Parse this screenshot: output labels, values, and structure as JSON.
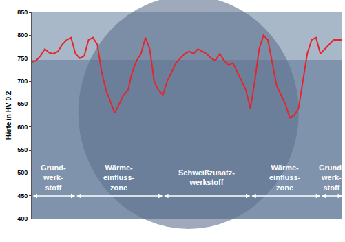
{
  "chart_data": {
    "type": "line",
    "y_label": "Härte in HV 0,2",
    "categories": [
      null,
      null,
      null,
      null,
      null,
      null,
      null,
      null,
      null,
      null,
      null,
      null,
      null,
      null,
      null,
      null,
      null,
      null,
      null,
      null,
      null,
      null,
      null,
      null,
      null,
      null,
      null,
      null,
      null,
      null,
      null,
      null,
      null,
      null,
      null,
      null,
      null,
      null,
      null,
      null,
      null,
      null,
      null,
      null,
      null,
      null,
      null,
      null,
      null,
      null,
      null,
      null,
      null,
      null,
      null,
      null,
      null,
      null,
      null,
      null,
      null,
      null,
      null,
      null,
      null,
      null,
      null,
      null,
      null,
      null,
      null,
      null
    ],
    "values": [
      742,
      745,
      755,
      770,
      762,
      760,
      765,
      780,
      790,
      795,
      760,
      750,
      755,
      790,
      795,
      780,
      720,
      680,
      655,
      630,
      650,
      670,
      680,
      720,
      745,
      760,
      795,
      770,
      700,
      680,
      670,
      700,
      720,
      740,
      750,
      760,
      765,
      760,
      770,
      765,
      760,
      750,
      745,
      760,
      745,
      735,
      740,
      720,
      700,
      680,
      640,
      700,
      770,
      800,
      790,
      740,
      690,
      670,
      650,
      620,
      625,
      640,
      700,
      760,
      790,
      795,
      760,
      770,
      780,
      790,
      790,
      790
    ],
    "color": "#e3262e",
    "ylim": [
      400,
      850
    ],
    "yticks": [
      400,
      450,
      500,
      550,
      600,
      650,
      700,
      750,
      800,
      850
    ],
    "grid": false,
    "tick_labels": "y",
    "regions": [
      {
        "label": [
          "Grund-",
          "werk-",
          "stoff"
        ],
        "from": 0,
        "to": 10
      },
      {
        "label": [
          "Wärme-",
          "einfluss-",
          "zone"
        ],
        "from": 10,
        "to": 30
      },
      {
        "label": [
          "Schweißzusatz-",
          "werkstoff"
        ],
        "from": 30,
        "to": 50
      },
      {
        "label": [
          "Wärme-",
          "einfluss-",
          "zone"
        ],
        "from": 50,
        "to": 66
      },
      {
        "label": [
          "Grund-",
          "werk-",
          "stoff"
        ],
        "from": 66,
        "to": 71
      }
    ]
  }
}
